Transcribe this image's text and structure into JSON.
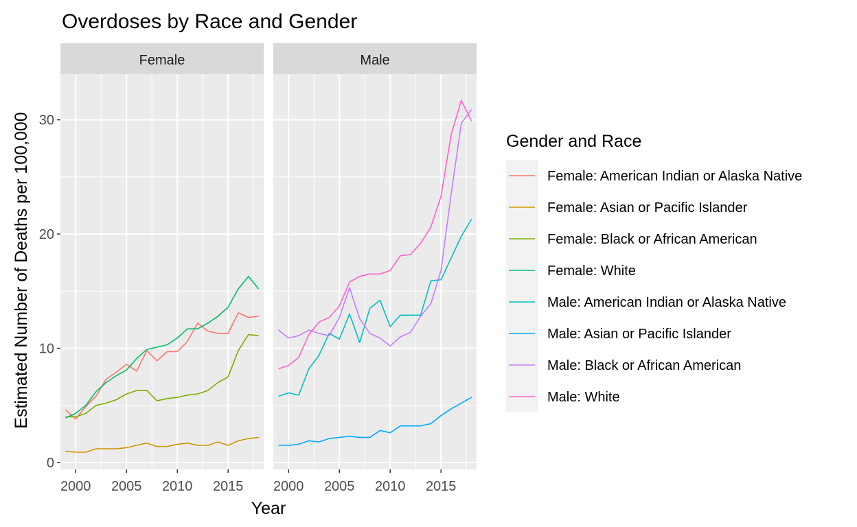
{
  "chart_data": {
    "type": "line",
    "title": "Overdoses by Race and Gender",
    "xlabel": "Year",
    "ylabel": "Estimated Number of Deaths per 100,000",
    "xlim": [
      1998.5,
      2018.5
    ],
    "ylim": [
      -0.6,
      34
    ],
    "x_ticks": [
      2000,
      2005,
      2010,
      2015
    ],
    "y_ticks": [
      0,
      10,
      20,
      30
    ],
    "grid": true,
    "legend_position": "right",
    "legend_title": "Gender and Race",
    "x": [
      1999,
      2000,
      2001,
      2002,
      2003,
      2004,
      2005,
      2006,
      2007,
      2008,
      2009,
      2010,
      2011,
      2012,
      2013,
      2014,
      2015,
      2016,
      2017,
      2018
    ],
    "panels": [
      {
        "label": "Female",
        "series": [
          {
            "name": "Female: American Indian or Alaska Native",
            "color": "#F8766D",
            "values": [
              4.6,
              3.8,
              4.9,
              5.8,
              7.3,
              7.9,
              8.6,
              8.0,
              9.8,
              8.9,
              9.7,
              9.7,
              10.6,
              12.2,
              11.5,
              11.3,
              11.3,
              13.1,
              12.7,
              12.8
            ]
          },
          {
            "name": "Female: Asian or Pacific Islander",
            "color": "#CD9600",
            "values": [
              1.0,
              0.9,
              0.9,
              1.2,
              1.2,
              1.2,
              1.3,
              1.5,
              1.7,
              1.4,
              1.4,
              1.6,
              1.7,
              1.5,
              1.5,
              1.8,
              1.5,
              1.9,
              2.1,
              2.2
            ]
          },
          {
            "name": "Female: Black or African American",
            "color": "#7CAE00",
            "values": [
              4.0,
              4.0,
              4.3,
              5.0,
              5.2,
              5.5,
              6.0,
              6.3,
              6.3,
              5.4,
              5.6,
              5.7,
              5.9,
              6.0,
              6.3,
              7.0,
              7.5,
              9.8,
              11.2,
              11.1
            ]
          },
          {
            "name": "Female: White",
            "color": "#00BE67",
            "values": [
              3.9,
              4.3,
              5.0,
              6.2,
              7.0,
              7.6,
              8.1,
              9.1,
              9.9,
              10.1,
              10.3,
              10.9,
              11.7,
              11.7,
              12.2,
              12.8,
              13.6,
              15.2,
              16.3,
              15.2
            ]
          }
        ]
      },
      {
        "label": "Male",
        "series": [
          {
            "name": "Male: American Indian or Alaska Native",
            "color": "#00BFC4",
            "values": [
              5.8,
              6.1,
              5.9,
              8.2,
              9.4,
              11.3,
              10.8,
              13.0,
              10.5,
              13.5,
              14.2,
              11.9,
              12.9,
              12.9,
              12.9,
              15.9,
              16.0,
              17.9,
              19.8,
              21.3
            ]
          },
          {
            "name": "Male: Asian or Pacific Islander",
            "color": "#00A9FF",
            "values": [
              1.5,
              1.5,
              1.6,
              1.9,
              1.8,
              2.1,
              2.2,
              2.3,
              2.2,
              2.2,
              2.8,
              2.6,
              3.2,
              3.2,
              3.2,
              3.4,
              4.1,
              4.7,
              5.2,
              5.7
            ]
          },
          {
            "name": "Male: Black or African American",
            "color": "#C77CFF",
            "values": [
              11.6,
              10.9,
              11.1,
              11.6,
              11.3,
              11.1,
              12.7,
              15.3,
              12.6,
              11.3,
              10.9,
              10.2,
              11.0,
              11.4,
              12.8,
              13.9,
              16.8,
              23.5,
              29.7,
              30.9
            ]
          },
          {
            "name": "Male: White",
            "color": "#FF61CC",
            "values": [
              8.2,
              8.5,
              9.2,
              11.2,
              12.3,
              12.7,
              13.7,
              15.8,
              16.3,
              16.5,
              16.5,
              16.8,
              18.1,
              18.2,
              19.2,
              20.6,
              23.3,
              28.7,
              31.7,
              29.9
            ]
          }
        ]
      }
    ]
  }
}
